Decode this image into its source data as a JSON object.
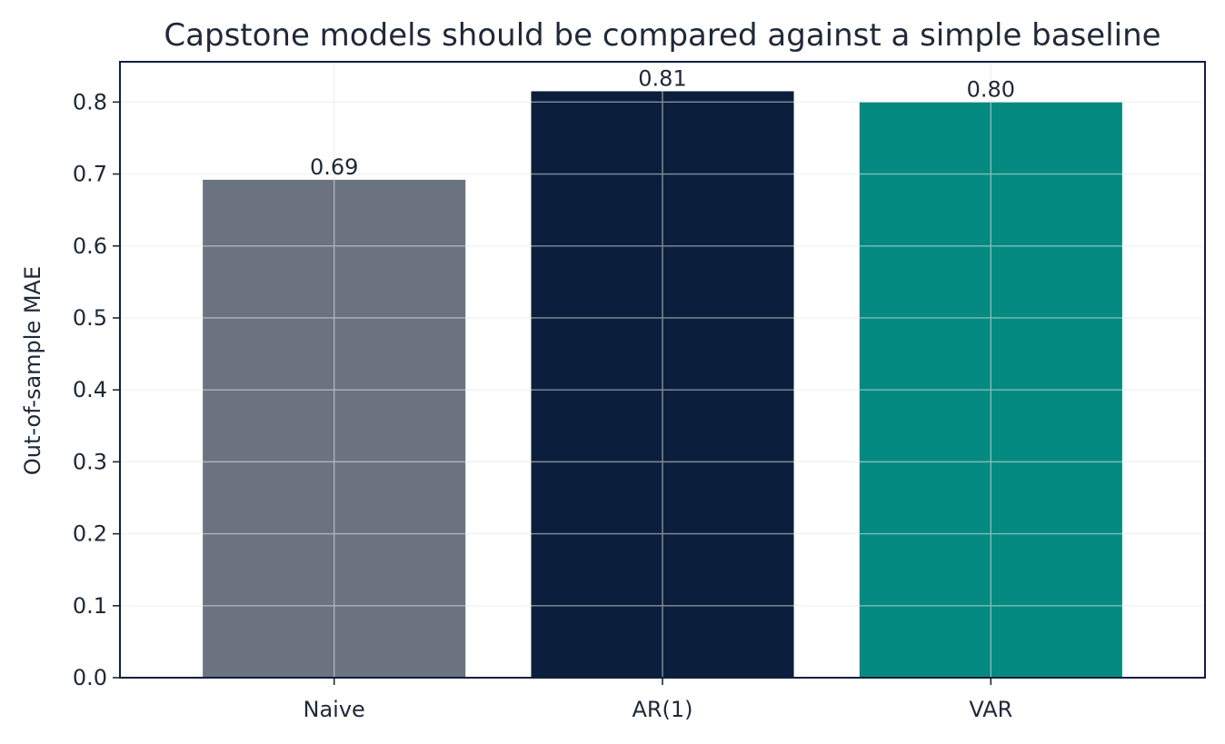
{
  "chart_data": {
    "type": "bar",
    "title": "Capstone models should be compared against a simple baseline",
    "xlabel": "",
    "ylabel": "Out-of-sample MAE",
    "categories": [
      "Naive",
      "AR(1)",
      "VAR"
    ],
    "values": [
      0.692,
      0.815,
      0.8
    ],
    "value_labels": [
      "0.69",
      "0.81",
      "0.80"
    ],
    "colors": [
      "#6b7280",
      "#0b1f3d",
      "#048a80"
    ],
    "ylim": [
      0,
      0.856
    ],
    "yticks": [
      0.0,
      0.1,
      0.2,
      0.3,
      0.4,
      0.5,
      0.6,
      0.7,
      0.8
    ],
    "ytick_labels": [
      "0.0",
      "0.1",
      "0.2",
      "0.3",
      "0.4",
      "0.5",
      "0.6",
      "0.7",
      "0.8"
    ],
    "grid": true,
    "legend": "none"
  }
}
